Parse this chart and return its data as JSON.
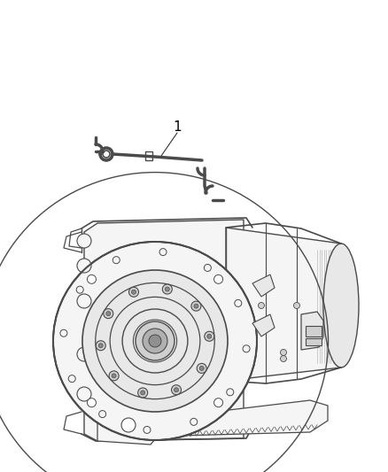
{
  "background_color": "#ffffff",
  "fig_width": 4.38,
  "fig_height": 5.33,
  "dpi": 100,
  "line_color": "#4a4a4a",
  "light_line": "#888888",
  "very_light": "#bbbbbb",
  "fill_light": "#f5f5f5",
  "fill_mid": "#e8e8e8",
  "fill_dark": "#d0d0d0"
}
